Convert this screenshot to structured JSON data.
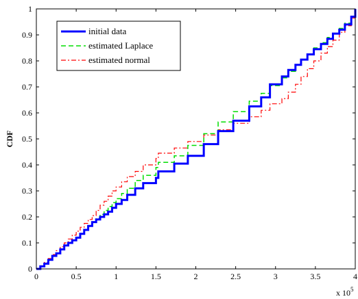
{
  "chart_data": {
    "type": "line",
    "title": "",
    "xlabel": "",
    "ylabel": "CDF",
    "x_multiplier_label": "x 10",
    "x_multiplier_exp": "5",
    "xlim": [
      0,
      4
    ],
    "ylim": [
      0,
      1
    ],
    "xticks": [
      "0",
      "0.5",
      "1",
      "1.5",
      "2",
      "2.5",
      "3",
      "3.5",
      "4"
    ],
    "yticks": [
      "0",
      "0.1",
      "0.2",
      "0.3",
      "0.4",
      "0.5",
      "0.6",
      "0.7",
      "0.8",
      "0.9",
      "1"
    ],
    "grid": false,
    "legend_position": "top-left",
    "series": [
      {
        "name": "initial data",
        "style": "solid",
        "color": "#0000ff",
        "x": [
          0,
          0.05,
          0.1,
          0.15,
          0.2,
          0.25,
          0.3,
          0.35,
          0.4,
          0.45,
          0.5,
          0.55,
          0.6,
          0.65,
          0.7,
          0.75,
          0.8,
          0.85,
          0.9,
          0.95,
          1.0,
          1.07,
          1.14,
          1.24,
          1.34,
          1.5,
          1.53,
          1.73,
          1.9,
          2.1,
          2.28,
          2.47,
          2.67,
          2.82,
          2.93,
          3.08,
          3.16,
          3.25,
          3.32,
          3.4,
          3.48,
          3.57,
          3.65,
          3.72,
          3.8,
          3.87,
          3.95,
          4.0
        ],
        "y": [
          0,
          0.01,
          0.02,
          0.035,
          0.05,
          0.06,
          0.075,
          0.09,
          0.1,
          0.11,
          0.12,
          0.135,
          0.15,
          0.165,
          0.18,
          0.19,
          0.2,
          0.21,
          0.22,
          0.235,
          0.25,
          0.265,
          0.285,
          0.31,
          0.33,
          0.35,
          0.375,
          0.405,
          0.435,
          0.48,
          0.53,
          0.57,
          0.625,
          0.66,
          0.71,
          0.74,
          0.765,
          0.785,
          0.805,
          0.825,
          0.845,
          0.865,
          0.885,
          0.905,
          0.92,
          0.94,
          0.97,
          1.0
        ]
      },
      {
        "name": "estimated Laplace",
        "style": "dashed",
        "color": "#00dd00",
        "x": [
          0,
          0.05,
          0.1,
          0.15,
          0.2,
          0.25,
          0.3,
          0.35,
          0.4,
          0.45,
          0.5,
          0.55,
          0.6,
          0.65,
          0.7,
          0.75,
          0.8,
          0.85,
          0.9,
          0.95,
          1.0,
          1.07,
          1.14,
          1.24,
          1.34,
          1.5,
          1.53,
          1.73,
          1.9,
          2.1,
          2.28,
          2.47,
          2.67,
          2.82,
          2.93,
          3.08,
          3.16,
          3.25,
          3.32,
          3.4,
          3.48,
          3.57,
          3.65,
          3.72,
          3.8,
          3.87,
          3.95,
          4.0
        ],
        "y": [
          0,
          0.01,
          0.02,
          0.035,
          0.05,
          0.06,
          0.075,
          0.09,
          0.1,
          0.11,
          0.12,
          0.135,
          0.15,
          0.165,
          0.18,
          0.195,
          0.21,
          0.225,
          0.24,
          0.255,
          0.27,
          0.29,
          0.31,
          0.34,
          0.36,
          0.39,
          0.41,
          0.435,
          0.475,
          0.52,
          0.565,
          0.605,
          0.645,
          0.675,
          0.705,
          0.735,
          0.76,
          0.785,
          0.805,
          0.825,
          0.85,
          0.87,
          0.89,
          0.905,
          0.925,
          0.945,
          0.97,
          1.0
        ]
      },
      {
        "name": "estimated normal",
        "style": "dashdot",
        "color": "#ff0000",
        "x": [
          0,
          0.05,
          0.1,
          0.15,
          0.2,
          0.25,
          0.3,
          0.35,
          0.4,
          0.45,
          0.5,
          0.55,
          0.6,
          0.65,
          0.7,
          0.75,
          0.8,
          0.85,
          0.9,
          0.95,
          1.0,
          1.07,
          1.14,
          1.24,
          1.34,
          1.5,
          1.53,
          1.73,
          1.9,
          2.1,
          2.28,
          2.47,
          2.67,
          2.82,
          2.93,
          3.08,
          3.16,
          3.25,
          3.32,
          3.4,
          3.48,
          3.57,
          3.65,
          3.72,
          3.8,
          3.87,
          3.95,
          4.0
        ],
        "y": [
          0,
          0.01,
          0.025,
          0.04,
          0.055,
          0.07,
          0.085,
          0.1,
          0.115,
          0.13,
          0.145,
          0.16,
          0.175,
          0.19,
          0.205,
          0.225,
          0.245,
          0.26,
          0.28,
          0.3,
          0.315,
          0.335,
          0.355,
          0.375,
          0.4,
          0.425,
          0.445,
          0.465,
          0.49,
          0.515,
          0.535,
          0.56,
          0.585,
          0.61,
          0.635,
          0.655,
          0.68,
          0.71,
          0.74,
          0.77,
          0.8,
          0.83,
          0.855,
          0.88,
          0.91,
          0.935,
          0.965,
          1.0
        ]
      }
    ]
  }
}
